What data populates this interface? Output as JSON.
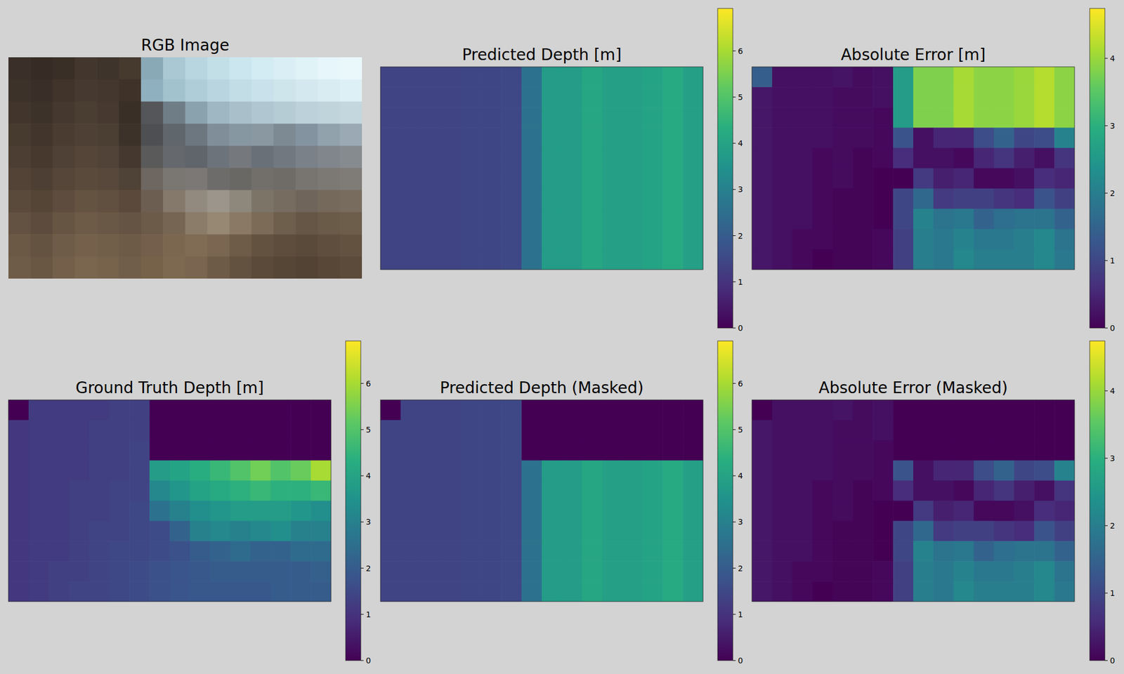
{
  "chart_data": [
    {
      "type": "image",
      "title": "RGB Image",
      "pixels": [
        [
          "#3a3029",
          "#362c25",
          "#3a2f27",
          "#43372d",
          "#3f342b",
          "#46392e",
          "#8aa9b6",
          "#a9c8d4",
          "#b8d6e0",
          "#c2dfe8",
          "#cbe6ee",
          "#d3ebf2",
          "#daeff5",
          "#e0f3f7",
          "#e6f6fa",
          "#eaf8fb"
        ],
        [
          "#3d322a",
          "#3a2f28",
          "#40342b",
          "#463a30",
          "#43372e",
          "#3e3229",
          "#8fb0be",
          "#a2c2ce",
          "#afcdd8",
          "#b9d6e0",
          "#c2dde6",
          "#c8e1ea",
          "#cee5ec",
          "#d3e8ef",
          "#d8ecf2",
          "#ddf0f5"
        ],
        [
          "#42362c",
          "#3d3229",
          "#45382e",
          "#4a3d32",
          "#47392f",
          "#3a2f27",
          "#54565a",
          "#6f7d87",
          "#8aa1ae",
          "#9fb7c3",
          "#a9c0cb",
          "#b0c7d1",
          "#b6ccd5",
          "#bcd1da",
          "#c0d4dc",
          "#c4d7df"
        ],
        [
          "#473a2f",
          "#42362c",
          "#4a3c31",
          "#4e4034",
          "#4b3e33",
          "#3d3229",
          "#4e4f52",
          "#5f666c",
          "#6c7780",
          "#7f8e98",
          "#8797a1",
          "#8a98a1",
          "#7d8a93",
          "#8493a0",
          "#92a2ad",
          "#9aa9b3"
        ],
        [
          "#4c3e32",
          "#47392e",
          "#4f4135",
          "#544538",
          "#514337",
          "#45392f",
          "#5a5a5a",
          "#65696d",
          "#5f656b",
          "#6c737a",
          "#75797e",
          "#6a7077",
          "#727880",
          "#7a8189",
          "#80868c",
          "#868b90"
        ],
        [
          "#524336",
          "#4d3f33",
          "#564639",
          "#5a4a3c",
          "#57483b",
          "#4f4236",
          "#6e6660",
          "#7a7671",
          "#7b7876",
          "#6e6c6a",
          "#6a6865",
          "#726f6b",
          "#6f6c68",
          "#787470",
          "#7c7874",
          "#7f7b77"
        ],
        [
          "#5a4a3c",
          "#554537",
          "#5e4d3e",
          "#655341",
          "#615040",
          "#5b4a3b",
          "#6c5f51",
          "#85796b",
          "#928a7f",
          "#9c958b",
          "#8e877c",
          "#7d7468",
          "#766c60",
          "#6f655a",
          "#75695c",
          "#786c5f"
        ],
        [
          "#635241",
          "#5d4c3d",
          "#675543",
          "#6d5a47",
          "#6a5846",
          "#655443",
          "#6c5b49",
          "#766552",
          "#8b7c69",
          "#978873",
          "#8a7a65",
          "#7b6b57",
          "#6e5f4d",
          "#655645",
          "#6a5a48",
          "#6d5d4b"
        ],
        [
          "#6b5946",
          "#655341",
          "#6f5c48",
          "#75614b",
          "#725f4a",
          "#6d5b48",
          "#735f4b",
          "#7b6750",
          "#806c55",
          "#7a6651",
          "#6f5c48",
          "#63523f",
          "#5e4d3c",
          "#5a4a3a",
          "#5f4e3d",
          "#63523f"
        ],
        [
          "#6f5c48",
          "#695744",
          "#735f4a",
          "#7a654e",
          "#77624c",
          "#715e4a",
          "#766149",
          "#7d6850",
          "#7a6550",
          "#6e5b47",
          "#645240",
          "#5b4a39",
          "#564636",
          "#534334",
          "#584737",
          "#5c4b3a"
        ]
      ]
    },
    {
      "type": "heatmap",
      "title": "Predicted Depth [m]",
      "color_range": [
        0,
        6.92
      ],
      "color_ticks": [
        0,
        1,
        2,
        3,
        4,
        5,
        6
      ],
      "cells": [
        [
          1.4,
          1.4,
          1.4,
          1.4,
          1.45,
          1.45,
          1.5,
          2.6,
          3.8,
          3.8,
          4.1,
          3.9,
          3.9,
          4.0,
          4.2,
          3.9
        ],
        [
          1.4,
          1.4,
          1.4,
          1.4,
          1.45,
          1.45,
          1.5,
          2.6,
          3.8,
          3.8,
          4.1,
          3.9,
          3.9,
          4.0,
          4.2,
          3.9
        ],
        [
          1.4,
          1.4,
          1.4,
          1.4,
          1.45,
          1.45,
          1.5,
          2.6,
          3.8,
          3.8,
          4.1,
          3.9,
          3.9,
          4.0,
          4.2,
          3.9
        ],
        [
          1.4,
          1.4,
          1.4,
          1.4,
          1.45,
          1.45,
          1.5,
          2.6,
          3.8,
          3.8,
          4.1,
          3.9,
          3.9,
          4.0,
          4.2,
          3.9
        ],
        [
          1.4,
          1.4,
          1.4,
          1.4,
          1.45,
          1.45,
          1.5,
          2.6,
          3.8,
          3.8,
          4.1,
          3.9,
          3.9,
          4.0,
          4.2,
          3.9
        ],
        [
          1.4,
          1.4,
          1.4,
          1.4,
          1.45,
          1.45,
          1.5,
          2.6,
          3.8,
          3.8,
          4.1,
          3.9,
          3.9,
          4.0,
          4.2,
          3.9
        ],
        [
          1.4,
          1.4,
          1.4,
          1.4,
          1.45,
          1.45,
          1.5,
          2.6,
          3.8,
          3.8,
          4.1,
          3.9,
          3.9,
          4.0,
          4.2,
          3.9
        ],
        [
          1.4,
          1.4,
          1.4,
          1.4,
          1.45,
          1.45,
          1.5,
          2.6,
          3.8,
          3.8,
          4.1,
          3.9,
          3.9,
          4.0,
          4.2,
          3.9
        ],
        [
          1.4,
          1.4,
          1.4,
          1.4,
          1.45,
          1.45,
          1.5,
          2.6,
          3.8,
          3.8,
          4.1,
          3.9,
          3.9,
          4.0,
          4.2,
          3.9
        ],
        [
          1.4,
          1.4,
          1.4,
          1.4,
          1.45,
          1.45,
          1.5,
          2.6,
          3.8,
          3.8,
          4.1,
          3.9,
          3.9,
          4.0,
          4.2,
          3.9
        ]
      ]
    },
    {
      "type": "heatmap",
      "title": "Absolute Error [m]",
      "color_range": [
        0,
        4.74
      ],
      "color_ticks": [
        0,
        1,
        2,
        3,
        4
      ],
      "cells": [
        [
          1.4,
          0.2,
          0.2,
          0.2,
          0.25,
          0.15,
          0.2,
          2.6,
          3.8,
          3.8,
          4.1,
          3.9,
          3.9,
          4.0,
          4.2,
          3.9
        ],
        [
          0.3,
          0.2,
          0.2,
          0.2,
          0.15,
          0.15,
          0.2,
          2.6,
          3.8,
          3.8,
          4.1,
          3.9,
          3.9,
          4.0,
          4.2,
          3.9
        ],
        [
          0.3,
          0.2,
          0.2,
          0.2,
          0.15,
          0.15,
          0.1,
          2.6,
          3.8,
          3.8,
          4.1,
          3.9,
          3.9,
          4.0,
          4.2,
          3.9
        ],
        [
          0.3,
          0.2,
          0.2,
          0.2,
          0.15,
          0.15,
          0.1,
          1.2,
          0.2,
          0.5,
          0.5,
          1.1,
          1.5,
          1.0,
          1.1,
          2.1
        ],
        [
          0.3,
          0.2,
          0.2,
          0.1,
          0.15,
          0.05,
          0.1,
          0.6,
          0.2,
          0.2,
          0.1,
          0.5,
          0.7,
          0.4,
          0.2,
          0.7
        ],
        [
          0.3,
          0.2,
          0.2,
          0.1,
          0.15,
          0.05,
          0.0,
          0.0,
          0.8,
          0.4,
          0.5,
          0.1,
          0.1,
          0.2,
          0.6,
          0.5
        ],
        [
          0.3,
          0.2,
          0.2,
          0.1,
          0.05,
          0.05,
          0.0,
          1.0,
          1.6,
          0.8,
          0.9,
          0.9,
          0.7,
          0.6,
          1.2,
          0.9
        ],
        [
          0.3,
          0.2,
          0.2,
          0.1,
          0.05,
          0.05,
          0.0,
          1.0,
          2.1,
          1.8,
          1.9,
          1.5,
          1.7,
          1.8,
          1.8,
          1.5
        ],
        [
          0.3,
          0.2,
          0.1,
          0.1,
          0.05,
          0.05,
          0.1,
          0.9,
          2.0,
          1.9,
          2.1,
          1.9,
          1.9,
          2.0,
          2.2,
          1.8
        ],
        [
          0.3,
          0.2,
          0.1,
          0.0,
          0.05,
          0.05,
          0.1,
          0.9,
          2.0,
          1.9,
          2.2,
          2.0,
          2.0,
          2.0,
          2.2,
          1.9
        ]
      ]
    },
    {
      "type": "heatmap",
      "title": "Ground Truth Depth [m]",
      "color_range": [
        0,
        6.92
      ],
      "color_ticks": [
        0,
        1,
        2,
        3,
        4,
        5,
        6
      ],
      "cells": [
        [
          0,
          1.2,
          1.2,
          1.2,
          1.2,
          1.3,
          1.3,
          0,
          0,
          0,
          0,
          0,
          0,
          0,
          0,
          0
        ],
        [
          1.1,
          1.2,
          1.2,
          1.2,
          1.3,
          1.3,
          1.3,
          0,
          0,
          0,
          0,
          0,
          0,
          0,
          0,
          0
        ],
        [
          1.1,
          1.2,
          1.2,
          1.2,
          1.3,
          1.3,
          1.4,
          0,
          0,
          0,
          0,
          0,
          0,
          0,
          0,
          0
        ],
        [
          1.1,
          1.2,
          1.2,
          1.2,
          1.3,
          1.3,
          1.4,
          3.8,
          4.0,
          4.3,
          4.6,
          5.0,
          5.4,
          5.0,
          5.3,
          6.0
        ],
        [
          1.1,
          1.2,
          1.2,
          1.3,
          1.3,
          1.4,
          1.4,
          3.2,
          3.6,
          4.0,
          4.2,
          4.4,
          4.6,
          4.4,
          4.4,
          4.6
        ],
        [
          1.1,
          1.2,
          1.2,
          1.3,
          1.3,
          1.4,
          1.5,
          2.6,
          3.0,
          3.4,
          3.6,
          3.8,
          3.8,
          3.8,
          3.6,
          3.4
        ],
        [
          1.1,
          1.2,
          1.2,
          1.3,
          1.4,
          1.4,
          1.5,
          1.6,
          2.2,
          3.0,
          3.2,
          3.0,
          3.2,
          3.4,
          3.0,
          3.0
        ],
        [
          1.1,
          1.2,
          1.2,
          1.3,
          1.4,
          1.5,
          1.5,
          1.6,
          1.7,
          2.0,
          2.2,
          2.4,
          2.2,
          2.2,
          2.4,
          2.4
        ],
        [
          1.1,
          1.2,
          1.3,
          1.3,
          1.4,
          1.5,
          1.6,
          1.7,
          1.8,
          1.9,
          2.0,
          2.0,
          2.0,
          2.0,
          2.0,
          2.1
        ],
        [
          1.1,
          1.2,
          1.3,
          1.4,
          1.4,
          1.5,
          1.6,
          1.7,
          1.8,
          1.9,
          1.9,
          1.9,
          1.9,
          2.0,
          2.0,
          2.0
        ]
      ]
    },
    {
      "type": "heatmap",
      "title": "Predicted Depth (Masked)",
      "color_range": [
        0,
        6.92
      ],
      "color_ticks": [
        0,
        1,
        2,
        3,
        4,
        5,
        6
      ],
      "cells": [
        [
          0,
          1.4,
          1.4,
          1.4,
          1.45,
          1.45,
          1.5,
          0,
          0,
          0,
          0,
          0,
          0,
          0,
          0,
          0
        ],
        [
          1.4,
          1.4,
          1.4,
          1.4,
          1.45,
          1.45,
          1.5,
          0,
          0,
          0,
          0,
          0,
          0,
          0,
          0,
          0
        ],
        [
          1.4,
          1.4,
          1.4,
          1.4,
          1.45,
          1.45,
          1.5,
          0,
          0,
          0,
          0,
          0,
          0,
          0,
          0,
          0
        ],
        [
          1.4,
          1.4,
          1.4,
          1.4,
          1.45,
          1.45,
          1.5,
          2.6,
          3.8,
          3.8,
          4.1,
          3.9,
          3.9,
          4.0,
          4.2,
          3.9
        ],
        [
          1.4,
          1.4,
          1.4,
          1.4,
          1.45,
          1.45,
          1.5,
          2.6,
          3.8,
          3.8,
          4.1,
          3.9,
          3.9,
          4.0,
          4.2,
          3.9
        ],
        [
          1.4,
          1.4,
          1.4,
          1.4,
          1.45,
          1.45,
          1.5,
          2.6,
          3.8,
          3.8,
          4.1,
          3.9,
          3.9,
          4.0,
          4.2,
          3.9
        ],
        [
          1.4,
          1.4,
          1.4,
          1.4,
          1.45,
          1.45,
          1.5,
          2.6,
          3.8,
          3.8,
          4.1,
          3.9,
          3.9,
          4.0,
          4.2,
          3.9
        ],
        [
          1.4,
          1.4,
          1.4,
          1.4,
          1.45,
          1.45,
          1.5,
          2.6,
          3.8,
          3.8,
          4.1,
          3.9,
          3.9,
          4.0,
          4.2,
          3.9
        ],
        [
          1.4,
          1.4,
          1.4,
          1.4,
          1.45,
          1.45,
          1.5,
          2.6,
          3.8,
          3.8,
          4.1,
          3.9,
          3.9,
          4.0,
          4.2,
          3.9
        ],
        [
          1.4,
          1.4,
          1.4,
          1.4,
          1.45,
          1.45,
          1.5,
          2.6,
          3.8,
          3.8,
          4.1,
          3.9,
          3.9,
          4.0,
          4.2,
          3.9
        ]
      ]
    },
    {
      "type": "heatmap",
      "title": "Absolute Error (Masked)",
      "color_range": [
        0,
        4.74
      ],
      "color_ticks": [
        0,
        1,
        2,
        3,
        4
      ],
      "cells": [
        [
          0,
          0.2,
          0.2,
          0.2,
          0.25,
          0.15,
          0.2,
          0,
          0,
          0,
          0,
          0,
          0,
          0,
          0,
          0
        ],
        [
          0.3,
          0.2,
          0.2,
          0.2,
          0.15,
          0.15,
          0.2,
          0,
          0,
          0,
          0,
          0,
          0,
          0,
          0,
          0
        ],
        [
          0.3,
          0.2,
          0.2,
          0.2,
          0.15,
          0.15,
          0.1,
          0,
          0,
          0,
          0,
          0,
          0,
          0,
          0,
          0
        ],
        [
          0.3,
          0.2,
          0.2,
          0.2,
          0.15,
          0.15,
          0.1,
          1.2,
          0.2,
          0.5,
          0.5,
          1.1,
          1.5,
          1.0,
          1.1,
          2.1
        ],
        [
          0.3,
          0.2,
          0.2,
          0.1,
          0.15,
          0.05,
          0.1,
          0.6,
          0.2,
          0.2,
          0.1,
          0.5,
          0.7,
          0.4,
          0.2,
          0.7
        ],
        [
          0.3,
          0.2,
          0.2,
          0.1,
          0.15,
          0.05,
          0.0,
          0.0,
          0.8,
          0.4,
          0.5,
          0.1,
          0.1,
          0.2,
          0.6,
          0.5
        ],
        [
          0.3,
          0.2,
          0.2,
          0.1,
          0.05,
          0.05,
          0.0,
          1.0,
          1.6,
          0.8,
          0.9,
          0.9,
          0.7,
          0.6,
          1.2,
          0.9
        ],
        [
          0.3,
          0.2,
          0.2,
          0.1,
          0.05,
          0.05,
          0.0,
          1.0,
          2.1,
          1.8,
          1.9,
          1.5,
          1.7,
          1.8,
          1.8,
          1.5
        ],
        [
          0.3,
          0.2,
          0.1,
          0.1,
          0.05,
          0.05,
          0.1,
          0.9,
          2.0,
          1.9,
          2.1,
          1.9,
          1.9,
          2.0,
          2.2,
          1.8
        ],
        [
          0.3,
          0.2,
          0.1,
          0.0,
          0.05,
          0.05,
          0.1,
          0.9,
          2.0,
          1.9,
          2.2,
          2.0,
          2.0,
          2.0,
          2.2,
          1.9
        ]
      ]
    }
  ]
}
